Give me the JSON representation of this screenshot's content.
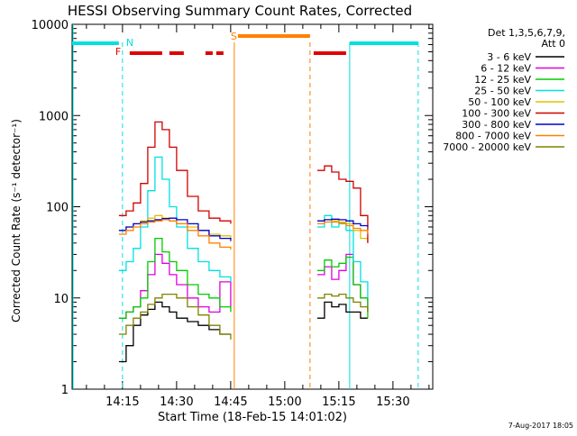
{
  "chart_data": {
    "type": "line",
    "title": "HESSI Observing Summary Count Rates, Corrected",
    "xlabel": "Start Time (18-Feb-15 14:01:02)",
    "ylabel": "Corrected Count Rate (s⁻¹ detector⁻¹)",
    "yscale": "log",
    "ylim": [
      1,
      10000
    ],
    "xlim": [
      "14:01:02",
      "15:41:02"
    ],
    "x_ticks": [
      "14:15",
      "14:30",
      "14:45",
      "15:00",
      "15:15",
      "15:30"
    ],
    "y_ticks": [
      "1",
      "10",
      "100",
      "1000",
      "10000"
    ],
    "legend": {
      "position": "top-right",
      "header": [
        "Det 1,3,5,6,7,9,",
        "Att 0"
      ]
    },
    "footer_timestamp": "7-Aug-2017 18:05",
    "grid": false,
    "series": [
      {
        "name": "3 - 6 keV",
        "color": "#000000",
        "x": [
          "14:14",
          "14:16",
          "14:18",
          "14:20",
          "14:22",
          "14:24",
          "14:26",
          "14:28",
          "14:30",
          "14:33",
          "14:36",
          "14:39",
          "14:42",
          "14:45",
          "15:09",
          "15:11",
          "15:13",
          "15:15",
          "15:17",
          "15:19",
          "15:21",
          "15:23"
        ],
        "y": [
          2,
          3,
          5,
          6.5,
          7.5,
          9,
          8,
          7,
          6,
          5.5,
          5,
          4.5,
          4,
          4,
          6,
          9,
          8,
          8.5,
          7,
          7,
          6,
          6
        ]
      },
      {
        "name": "6 - 12 keV",
        "color": "#e000e0",
        "x": [
          "14:14",
          "14:16",
          "14:18",
          "14:20",
          "14:22",
          "14:24",
          "14:26",
          "14:28",
          "14:30",
          "14:33",
          "14:36",
          "14:39",
          "14:42",
          "14:45",
          "15:09",
          "15:11",
          "15:13",
          "15:15",
          "15:17",
          "15:19",
          "15:21",
          "15:23"
        ],
        "y": [
          6,
          7,
          8,
          12,
          18,
          30,
          24,
          18,
          14,
          10,
          8,
          7,
          15,
          8,
          18,
          22,
          16,
          20,
          30,
          14,
          10,
          7
        ]
      },
      {
        "name": "12 - 25 keV",
        "color": "#00cc00",
        "x": [
          "14:14",
          "14:16",
          "14:18",
          "14:20",
          "14:22",
          "14:24",
          "14:26",
          "14:28",
          "14:30",
          "14:33",
          "14:36",
          "14:39",
          "14:42",
          "14:45",
          "15:09",
          "15:11",
          "15:13",
          "15:15",
          "15:17",
          "15:19",
          "15:21",
          "15:23"
        ],
        "y": [
          6,
          7,
          8,
          10,
          25,
          45,
          32,
          25,
          20,
          14,
          11,
          10,
          8,
          7,
          20,
          26,
          22,
          24,
          28,
          14,
          10,
          6
        ]
      },
      {
        "name": "25 - 50 keV",
        "color": "#00e0e0",
        "x": [
          "14:14",
          "14:16",
          "14:18",
          "14:20",
          "14:22",
          "14:24",
          "14:26",
          "14:28",
          "14:30",
          "14:33",
          "14:36",
          "14:39",
          "14:42",
          "14:45",
          "15:09",
          "15:11",
          "15:13",
          "15:15",
          "15:17",
          "15:19",
          "15:21",
          "15:23"
        ],
        "y": [
          20,
          25,
          35,
          60,
          150,
          350,
          200,
          100,
          60,
          35,
          25,
          20,
          17,
          15,
          60,
          80,
          60,
          65,
          55,
          25,
          15,
          10
        ]
      },
      {
        "name": "50 - 100 keV",
        "color": "#e0c000",
        "x": [
          "14:14",
          "14:16",
          "14:18",
          "14:20",
          "14:22",
          "14:24",
          "14:26",
          "14:28",
          "14:30",
          "14:33",
          "14:36",
          "14:39",
          "14:42",
          "14:45",
          "15:09",
          "15:11",
          "15:13",
          "15:15",
          "15:17",
          "15:19",
          "15:21",
          "15:23"
        ],
        "y": [
          55,
          60,
          65,
          70,
          75,
          80,
          75,
          70,
          65,
          60,
          55,
          50,
          48,
          45,
          70,
          72,
          70,
          68,
          65,
          55,
          45,
          40
        ]
      },
      {
        "name": "100 - 300 keV",
        "color": "#d00000",
        "x": [
          "14:14",
          "14:16",
          "14:18",
          "14:20",
          "14:22",
          "14:24",
          "14:26",
          "14:28",
          "14:30",
          "14:33",
          "14:36",
          "14:39",
          "14:42",
          "14:45",
          "15:09",
          "15:11",
          "15:13",
          "15:15",
          "15:17",
          "15:19",
          "15:21",
          "15:23"
        ],
        "y": [
          80,
          90,
          110,
          180,
          450,
          850,
          700,
          450,
          250,
          130,
          90,
          75,
          70,
          65,
          250,
          280,
          240,
          200,
          190,
          160,
          80,
          40
        ]
      },
      {
        "name": "300 - 800 keV",
        "color": "#0000d0",
        "x": [
          "14:14",
          "14:16",
          "14:18",
          "14:20",
          "14:22",
          "14:24",
          "14:26",
          "14:28",
          "14:30",
          "14:33",
          "14:36",
          "14:39",
          "14:42",
          "14:45",
          "15:09",
          "15:11",
          "15:13",
          "15:15",
          "15:17",
          "15:19",
          "15:21",
          "15:23"
        ],
        "y": [
          55,
          60,
          65,
          68,
          70,
          72,
          74,
          75,
          72,
          65,
          55,
          48,
          45,
          42,
          70,
          72,
          73,
          72,
          70,
          65,
          62,
          60
        ]
      },
      {
        "name": "800 - 7000 keV",
        "color": "#ff8000",
        "x": [
          "14:14",
          "14:16",
          "14:18",
          "14:20",
          "14:22",
          "14:24",
          "14:26",
          "14:28",
          "14:30",
          "14:33",
          "14:36",
          "14:39",
          "14:42",
          "14:45",
          "15:09",
          "15:11",
          "15:13",
          "15:15",
          "15:17",
          "15:19",
          "15:21",
          "15:23"
        ],
        "y": [
          50,
          55,
          60,
          65,
          68,
          70,
          72,
          70,
          65,
          55,
          48,
          40,
          36,
          34,
          65,
          68,
          68,
          66,
          62,
          58,
          55,
          50
        ]
      },
      {
        "name": "7000 - 20000 keV",
        "color": "#808000",
        "x": [
          "14:14",
          "14:16",
          "14:18",
          "14:20",
          "14:22",
          "14:24",
          "14:26",
          "14:28",
          "14:30",
          "14:33",
          "14:36",
          "14:39",
          "14:42",
          "14:45",
          "15:09",
          "15:11",
          "15:13",
          "15:15",
          "15:17",
          "15:19",
          "15:21",
          "15:23"
        ],
        "y": [
          4,
          5,
          6,
          7,
          8.5,
          10,
          11,
          11,
          10,
          8,
          6.5,
          5,
          4,
          3.5,
          10,
          11,
          10.5,
          11,
          10,
          9,
          8,
          7
        ]
      }
    ],
    "annotations": [
      {
        "label": "N",
        "color": "#00e0e0"
      },
      {
        "label": "F",
        "color": "#e00000"
      },
      {
        "label": "S",
        "color": "#ff8000"
      }
    ],
    "bars": {
      "night": {
        "color": "#00e0e0",
        "spans": [
          [
            "14:01",
            "14:14"
          ],
          [
            "15:18",
            "15:37"
          ]
        ]
      },
      "flare": {
        "color": "#e00000",
        "spans": [
          [
            "14:17",
            "14:26"
          ],
          [
            "14:28",
            "14:32"
          ],
          [
            "14:38",
            "14:40"
          ],
          [
            "14:41",
            "14:43"
          ],
          [
            "15:08",
            "15:17"
          ]
        ]
      },
      "saa": {
        "color": "#ff8000",
        "spans": [
          [
            "14:47",
            "15:07"
          ]
        ]
      }
    },
    "vlines": [
      {
        "x": "14:15",
        "color": "#00e0e0",
        "style": "dashed"
      },
      {
        "x": "14:46",
        "color": "#ff8000",
        "style": "solid"
      },
      {
        "x": "15:07",
        "color": "#ff8000",
        "style": "dashed"
      },
      {
        "x": "15:18",
        "color": "#00e0e0",
        "style": "solid"
      },
      {
        "x": "15:37",
        "color": "#00e0e0",
        "style": "dashed"
      }
    ]
  }
}
